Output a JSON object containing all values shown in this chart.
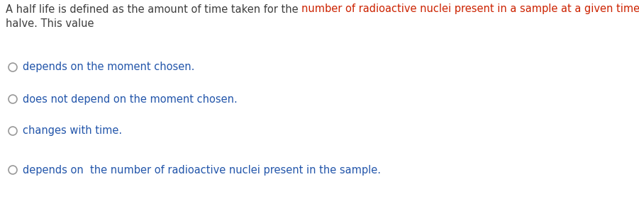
{
  "bg_color": "#ffffff",
  "text_dark": "#3d3d3d",
  "text_red": "#cc2200",
  "text_blue": "#2255aa",
  "circle_color": "#999999",
  "font_size": 10.5,
  "header": {
    "line1_black": "A half life is defined as the amount of time taken for the ",
    "line1_red": "number of radioactive nuclei present in a sample at a given time to exactly",
    "line2_black": "halve. This value"
  },
  "options": [
    "depends on the moment chosen.",
    "does not depend on the moment chosen.",
    "changes with time.",
    "depends on  the number of radioactive nuclei present in the sample."
  ],
  "fig_width": 9.01,
  "fig_height": 2.91,
  "dpi": 100
}
